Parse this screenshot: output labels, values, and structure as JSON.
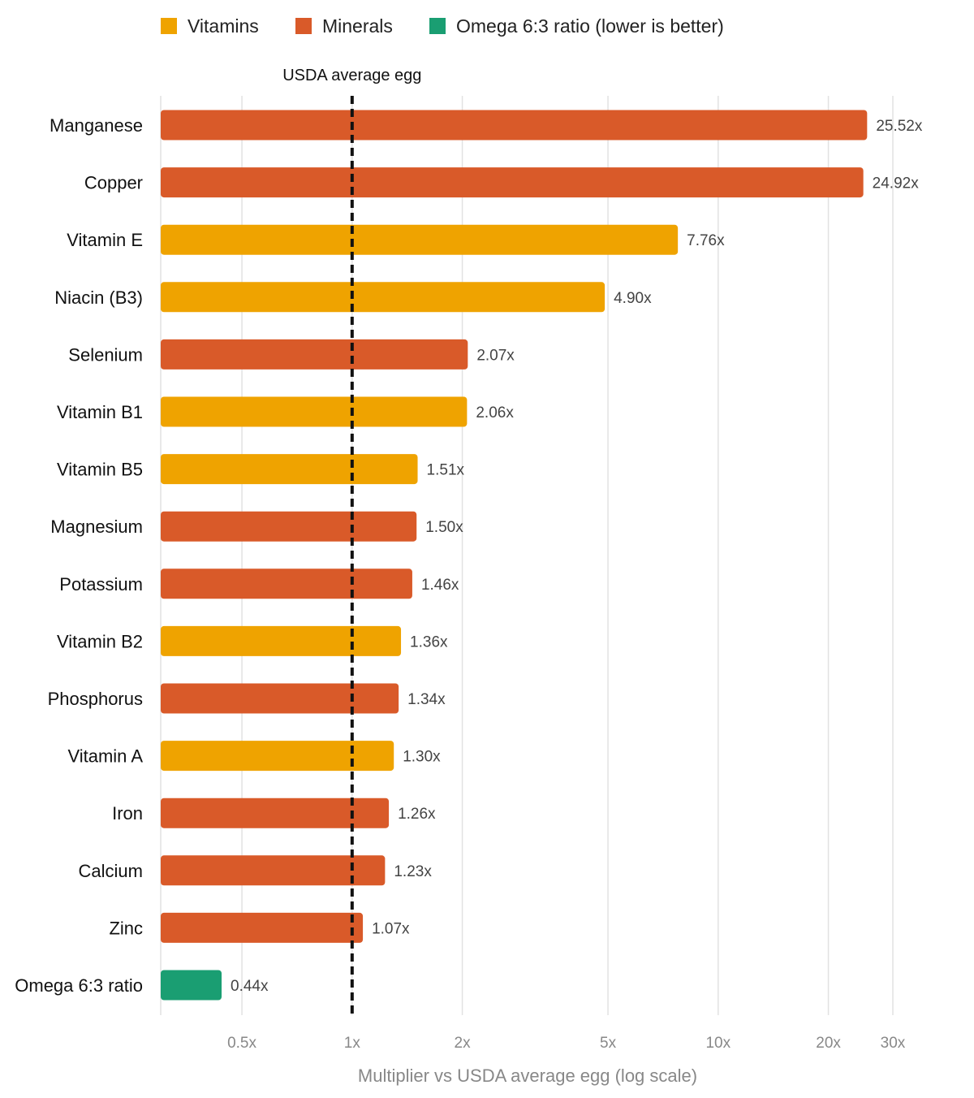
{
  "chart_data": {
    "type": "bar",
    "orientation": "horizontal",
    "x_scale": "log",
    "xlim": [
      0.3,
      30
    ],
    "xlabel": "Multiplier vs USDA average egg (log scale)",
    "xticks": [
      {
        "value": 0.5,
        "label": "0.5x"
      },
      {
        "value": 1,
        "label": "1x"
      },
      {
        "value": 2,
        "label": "2x"
      },
      {
        "value": 5,
        "label": "5x"
      },
      {
        "value": 10,
        "label": "10x"
      },
      {
        "value": 20,
        "label": "20x"
      },
      {
        "value": 30,
        "label": "30x"
      }
    ],
    "grid": true,
    "legend_position": "top-left",
    "legend": [
      {
        "key": "vitamin",
        "label": "Vitamins",
        "color": "#EFA300"
      },
      {
        "key": "mineral",
        "label": "Minerals",
        "color": "#D95A29"
      },
      {
        "key": "omega",
        "label": "Omega 6:3 ratio (lower is better)",
        "color": "#1A9E72"
      }
    ],
    "reference_line": {
      "value": 1,
      "label": "USDA average egg",
      "style": "dashed"
    },
    "bars": [
      {
        "category": "Manganese",
        "value": 25.52,
        "label": "25.52x",
        "group": "mineral"
      },
      {
        "category": "Copper",
        "value": 24.92,
        "label": "24.92x",
        "group": "mineral"
      },
      {
        "category": "Vitamin E",
        "value": 7.76,
        "label": "7.76x",
        "group": "vitamin"
      },
      {
        "category": "Niacin (B3)",
        "value": 4.9,
        "label": "4.90x",
        "group": "vitamin"
      },
      {
        "category": "Selenium",
        "value": 2.07,
        "label": "2.07x",
        "group": "mineral"
      },
      {
        "category": "Vitamin B1",
        "value": 2.06,
        "label": "2.06x",
        "group": "vitamin"
      },
      {
        "category": "Vitamin B5",
        "value": 1.51,
        "label": "1.51x",
        "group": "vitamin"
      },
      {
        "category": "Magnesium",
        "value": 1.5,
        "label": "1.50x",
        "group": "mineral"
      },
      {
        "category": "Potassium",
        "value": 1.46,
        "label": "1.46x",
        "group": "mineral"
      },
      {
        "category": "Vitamin B2",
        "value": 1.36,
        "label": "1.36x",
        "group": "vitamin"
      },
      {
        "category": "Phosphorus",
        "value": 1.34,
        "label": "1.34x",
        "group": "mineral"
      },
      {
        "category": "Vitamin A",
        "value": 1.3,
        "label": "1.30x",
        "group": "vitamin"
      },
      {
        "category": "Iron",
        "value": 1.26,
        "label": "1.26x",
        "group": "mineral"
      },
      {
        "category": "Calcium",
        "value": 1.23,
        "label": "1.23x",
        "group": "mineral"
      },
      {
        "category": "Zinc",
        "value": 1.07,
        "label": "1.07x",
        "group": "mineral"
      },
      {
        "category": "Omega 6:3 ratio",
        "value": 0.44,
        "label": "0.44x",
        "group": "omega"
      }
    ]
  }
}
